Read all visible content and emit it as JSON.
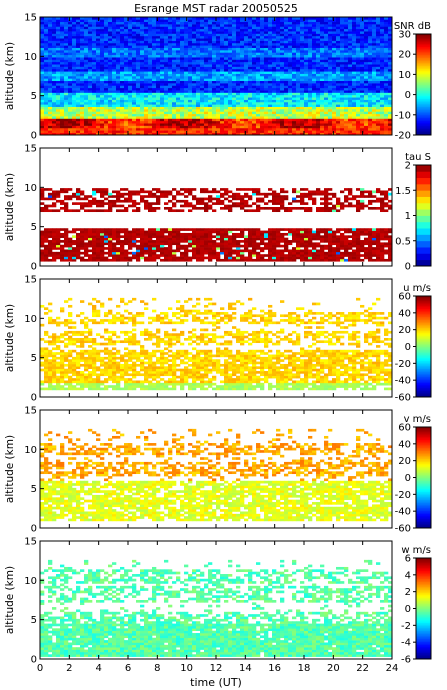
{
  "chart_data": {
    "type": "heatmap",
    "title": "Esrange MST radar 20050525",
    "xlabel": "time (UT)",
    "xlim": [
      0,
      24
    ],
    "x_ticks": [
      0,
      2,
      4,
      6,
      8,
      10,
      12,
      14,
      16,
      18,
      20,
      22,
      24
    ],
    "colormap": "jet",
    "panels": [
      {
        "id": "snr",
        "ylabel": "altitude (km)",
        "ylim": [
          0,
          15
        ],
        "y_ticks": [
          0,
          5,
          10,
          15
        ],
        "colorbar_label": "SNR dB",
        "clim": [
          -20,
          30
        ],
        "colorbar_ticks": [
          -20,
          -10,
          0,
          10,
          20,
          30
        ],
        "coverage": "0-15 km, all times",
        "typical": [
          {
            "altitude_range": [
              0,
              2
            ],
            "value": 25
          },
          {
            "altitude_range": [
              2,
              5
            ],
            "value": 5
          },
          {
            "altitude_range": [
              5,
              15
            ],
            "value": -12
          }
        ]
      },
      {
        "id": "tau",
        "ylabel": "altitude (km)",
        "ylim": [
          0,
          15
        ],
        "y_ticks": [
          0,
          5,
          10,
          15
        ],
        "colorbar_label": "tau S",
        "clim": [
          0,
          2
        ],
        "colorbar_ticks": [
          0,
          0.5,
          1,
          1.5,
          2
        ],
        "coverage": "approx 0.5-5 km, 7-10 km",
        "typical": [
          {
            "altitude_range": [
              0.5,
              10
            ],
            "value": 2
          }
        ]
      },
      {
        "id": "u",
        "ylabel": "altitude (km)",
        "ylim": [
          0,
          15
        ],
        "y_ticks": [
          0,
          5,
          10,
          15
        ],
        "colorbar_label": "u m/s",
        "clim": [
          -60,
          60
        ],
        "colorbar_ticks": [
          -60,
          -40,
          -20,
          0,
          20,
          40,
          60
        ],
        "coverage": "approx 1-12 km",
        "typical": [
          {
            "altitude_range": [
              1,
              2
            ],
            "value": 5
          },
          {
            "altitude_range": [
              2,
              12
            ],
            "value": 20
          }
        ]
      },
      {
        "id": "v",
        "ylabel": "altitude (km)",
        "ylim": [
          0,
          15
        ],
        "y_ticks": [
          0,
          5,
          10,
          15
        ],
        "colorbar_label": "v m/s",
        "clim": [
          -60,
          60
        ],
        "colorbar_ticks": [
          -60,
          -40,
          -20,
          0,
          20,
          40,
          60
        ],
        "coverage": "approx 1-12 km",
        "typical": [
          {
            "altitude_range": [
              1,
              6
            ],
            "value": 12
          },
          {
            "altitude_range": [
              6,
              12
            ],
            "value": 25
          }
        ]
      },
      {
        "id": "w",
        "ylabel": "altitude (km)",
        "ylim": [
          0,
          15
        ],
        "y_ticks": [
          0,
          5,
          10,
          15
        ],
        "colorbar_label": "w m/s",
        "clim": [
          -6,
          6
        ],
        "colorbar_ticks": [
          -6,
          -4,
          -2,
          0,
          2,
          4,
          6
        ],
        "coverage": "approx 0.5-12 km",
        "typical": [
          {
            "altitude_range": [
              0.5,
              12
            ],
            "value": -0.5
          }
        ]
      }
    ]
  }
}
